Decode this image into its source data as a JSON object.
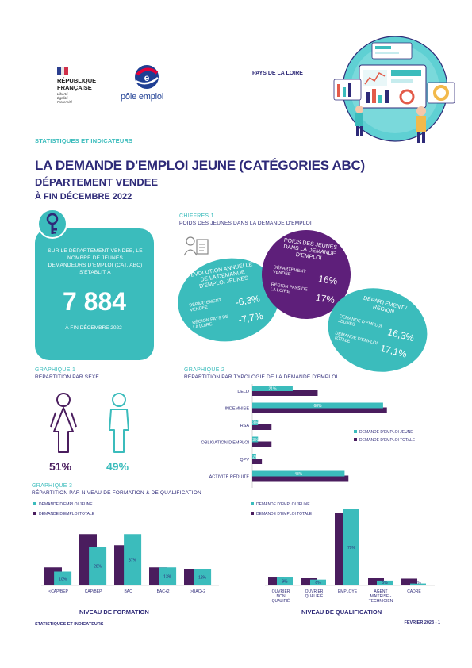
{
  "header": {
    "republic_line1": "RÉPUBLIQUE",
    "republic_line2": "FRANÇAISE",
    "motto_line1": "Liberté",
    "motto_line2": "Égalité",
    "motto_line3": "Fraternité",
    "pe_brand": "pôle emploi",
    "region": "PAYS DE LA LOIRE",
    "stats_label": "STATISTIQUES ET INDICATEURS",
    "title": "LA DEMANDE D'EMPLOI JEUNE (CATÉGORIES ABC)",
    "subtitle": "DÉPARTEMENT VENDEE",
    "date_line": "À FIN DÉCEMBRE 2022"
  },
  "keycard": {
    "text": "SUR LE DÉPARTEMENT VENDEE, LE NOMBRE DE JEUNES DEMANDEURS D'EMPLOI (CAT. ABC) S'ÉTABLIT À",
    "value": "7 884",
    "date": "À FIN DÉCEMBRE 2022"
  },
  "chiffres": {
    "label": "CHIFFRES 1",
    "title": "POIDS DES JEUNES DANS LA DEMANDE D'EMPLOI",
    "bubble_evolution": {
      "title": "ÉVOLUTION ANNUELLE DE LA DEMANDE D'EMPLOI JEUNES",
      "row1_label": "DÉPARTEMENT VENDEE",
      "row1_value": "-6,3%",
      "row2_label": "RÉGION PAYS DE LA LOIRE",
      "row2_value": "-7,7%"
    },
    "bubble_poids": {
      "title": "POIDS DES JEUNES DANS LA DEMANDE D'EMPLOI",
      "row1_label": "DÉPARTEMENT VENDEE",
      "row1_value": "16%",
      "row2_label": "RÉGION PAYS DE LA LOIRE",
      "row2_value": "17%"
    },
    "bubble_region": {
      "title": "DÉPARTEMENT / RÉGION",
      "row1_label": "DEMANDE D'EMPLOI JEUNES",
      "row1_value": "16,3%",
      "row2_label": "DEMANDE D'EMPLOI TOTALE",
      "row2_value": "17,1%"
    }
  },
  "graph1": {
    "label": "GRAPHIQUE 1",
    "title": "RÉPARTITION PAR SEXE",
    "female_pct": "51%",
    "male_pct": "49%"
  },
  "chart_data": [
    {
      "type": "bar",
      "orientation": "horizontal",
      "label": "GRAPHIQUE 2",
      "title": "RÉPARTITION PAR TYPOLOGIE DE LA DEMANDE D'EMPLOI",
      "categories": [
        "DELD",
        "INDEMNISÉ",
        "RSA",
        "OBLIGATION D'EMPLOI",
        "QPV",
        "ACTIVITÉ RÉDUITE"
      ],
      "series": [
        {
          "name": "DEMANDE D'EMPLOI JEUNE",
          "values": [
            21,
            68,
            3,
            3,
            2,
            48
          ],
          "labels": [
            "21%",
            "68%",
            "3%",
            "3%",
            "2%",
            "48%"
          ],
          "color": "#3bbcbc"
        },
        {
          "name": "DEMANDE D'EMPLOI TOTALE",
          "values": [
            34,
            70,
            10,
            10,
            5,
            50
          ],
          "color": "#4a1d5e"
        }
      ],
      "xlim": [
        0,
        80
      ],
      "legend": "right"
    },
    {
      "type": "bar",
      "label": "GRAPHIQUE 3",
      "title": "RÉPARTITION PAR NIVEAU DE FORMATION & DE QUALIFICATION",
      "xlabel": "NIVEAU DE FORMATION",
      "categories": [
        "<CAP/BEP",
        "CAP/BEP",
        "BAC",
        "BAC+2",
        ">BAC+2"
      ],
      "series": [
        {
          "name": "DEMANDE D'EMPLOI JEUNE",
          "values": [
            10,
            28,
            37,
            13,
            12
          ],
          "labels": [
            "10%",
            "28%",
            "37%",
            "13%",
            "12%"
          ],
          "color": "#3bbcbc"
        },
        {
          "name": "DEMANDE D'EMPLOI TOTALE",
          "values": [
            13,
            37,
            29,
            13,
            12
          ],
          "color": "#4a1d5e"
        }
      ],
      "ylim": [
        0,
        40
      ],
      "legend": "top-left"
    },
    {
      "type": "bar",
      "xlabel": "NIVEAU DE QUALIFICATION",
      "categories": [
        "OUVRIER NON QUALIFIÉ",
        "OUVRIER QUALIFIÉ",
        "EMPLOYÉ",
        "AGENT MAITRISE - TECHNICIEN",
        "CADRE"
      ],
      "series": [
        {
          "name": "DEMANDE D'EMPLOI JEUNE",
          "values": [
            9,
            6,
            79,
            5,
            2
          ],
          "labels": [
            "9%",
            "6%",
            "79%",
            "5%",
            "2%"
          ],
          "color": "#3bbcbc"
        },
        {
          "name": "DEMANDE D'EMPLOI TOTALE",
          "values": [
            9,
            8,
            75,
            8,
            7
          ],
          "color": "#4a1d5e"
        }
      ],
      "ylim": [
        0,
        82
      ],
      "legend": "top-left"
    }
  ],
  "footer": {
    "left": "STATISTIQUES ET INDICATEURS",
    "right": "FÉVRIER 2023 - 1"
  },
  "colors": {
    "navy": "#2e2a78",
    "teal": "#3bbcbc",
    "plum": "#4a1d5e",
    "purple_bubble": "#5e1f7a"
  }
}
